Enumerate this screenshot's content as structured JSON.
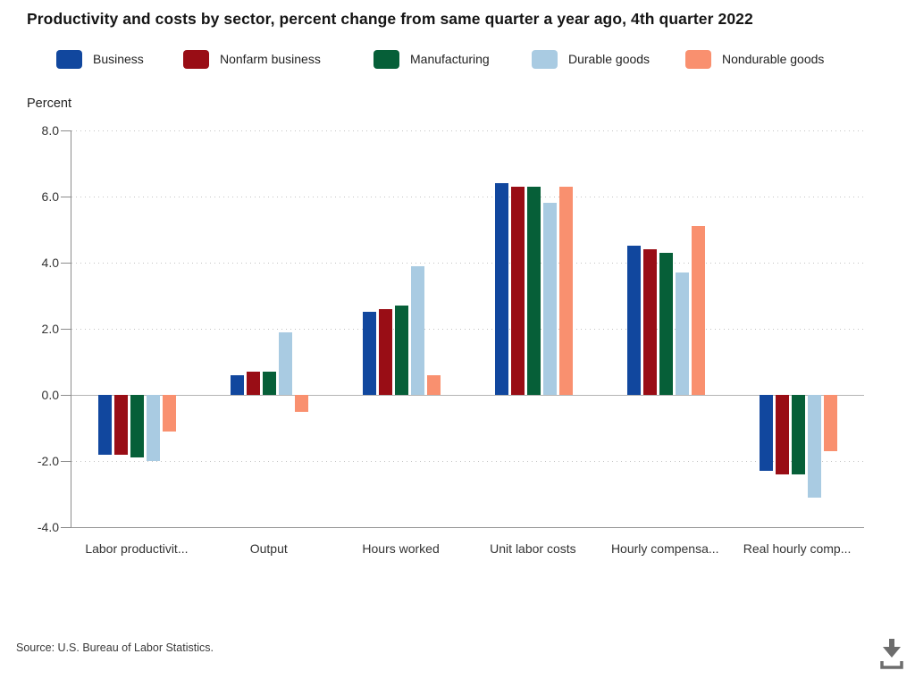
{
  "chart_data": {
    "type": "bar",
    "title": "Productivity and costs by sector, percent change from same quarter a year ago, 4th quarter 2022",
    "xlabel": "",
    "ylabel": "Percent",
    "ylim": [
      -4.0,
      8.0
    ],
    "ytick_interval": 2.0,
    "yticks": [
      "8.0",
      "6.0",
      "4.0",
      "2.0",
      "0.0",
      "-2.0",
      "-4.0"
    ],
    "grid": "dotted-horizontal",
    "legend_position": "top",
    "categories": [
      "Labor productivity",
      "Output",
      "Hours worked",
      "Unit labor costs",
      "Hourly compensation",
      "Real hourly compensation"
    ],
    "category_labels_displayed": [
      "Labor productivit...",
      "Output",
      "Hours worked",
      "Unit labor costs",
      "Hourly compensa...",
      "Real hourly comp..."
    ],
    "series": [
      {
        "name": "Business",
        "color": "#11479E",
        "values": [
          -1.8,
          0.6,
          2.5,
          6.4,
          4.5,
          -2.3
        ]
      },
      {
        "name": "Nonfarm business",
        "color": "#990D15",
        "values": [
          -1.8,
          0.7,
          2.6,
          6.3,
          4.4,
          -2.4
        ]
      },
      {
        "name": "Manufacturing",
        "color": "#065F38",
        "values": [
          -1.9,
          0.7,
          2.7,
          6.3,
          4.3,
          -2.4
        ]
      },
      {
        "name": "Durable goods",
        "color": "#A9CBE2",
        "values": [
          -2.0,
          1.9,
          3.9,
          5.8,
          3.7,
          -3.1
        ]
      },
      {
        "name": "Nondurable goods",
        "color": "#F9906F",
        "values": [
          -1.1,
          -0.5,
          0.6,
          6.3,
          5.1,
          -1.7
        ]
      }
    ]
  },
  "footer": {
    "source": "Source: U.S. Bureau of Labor Statistics.",
    "download_icon": "download-icon",
    "icon_color": "#6d6d6d"
  }
}
